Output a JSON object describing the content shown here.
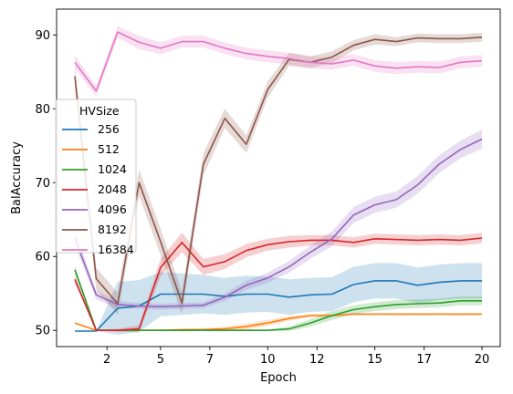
{
  "chart_data": {
    "type": "line",
    "xlabel": "Epoch",
    "ylabel": "BalAccuracy",
    "x": [
      1,
      2,
      3,
      4,
      5,
      6,
      7,
      8,
      9,
      10,
      11,
      12,
      13,
      14,
      15,
      16,
      17,
      18,
      19,
      20
    ],
    "x_tick_labels": [
      "2",
      "5",
      "7",
      "10",
      "12",
      "15",
      "17",
      "20"
    ],
    "x_tick_values": [
      2.5,
      5,
      7.3,
      10,
      12.3,
      15,
      17.3,
      20
    ],
    "y_ticks": [
      50,
      60,
      70,
      80,
      90
    ],
    "xlim": [
      0.15,
      20.85
    ],
    "ylim": [
      47.8,
      93.5
    ],
    "legend": {
      "title": "HVSize",
      "position": "center-left"
    },
    "series": [
      {
        "name": "256",
        "color": "#1f77b4",
        "values": [
          49.9,
          49.9,
          53.0,
          53.3,
          54.9,
          54.9,
          54.9,
          54.6,
          54.9,
          54.9,
          54.5,
          54.8,
          54.9,
          56.2,
          56.7,
          56.7,
          56.1,
          56.5,
          56.7,
          56.7
        ],
        "band": [
          0.0,
          0.0,
          3.6,
          3.5,
          3.0,
          2.8,
          2.6,
          2.5,
          2.5,
          2.4,
          2.4,
          2.3,
          2.3,
          2.4,
          2.4,
          2.4,
          2.4,
          2.4,
          2.4,
          2.4
        ]
      },
      {
        "name": "512",
        "color": "#ff7f0e",
        "values": [
          51.0,
          50.0,
          50.0,
          50.0,
          50.0,
          50.1,
          50.1,
          50.2,
          50.5,
          51.0,
          51.6,
          52.0,
          52.0,
          52.2,
          52.2,
          52.2,
          52.2,
          52.2,
          52.2,
          52.2
        ],
        "band": [
          0.0,
          0.0,
          0.1,
          0.1,
          0.1,
          0.1,
          0.2,
          0.3,
          0.4,
          0.4,
          0.3,
          0.2,
          0.2,
          0.1,
          0.1,
          0.1,
          0.1,
          0.1,
          0.1,
          0.1
        ]
      },
      {
        "name": "1024",
        "color": "#2ca02c",
        "values": [
          58.2,
          50.0,
          50.0,
          50.0,
          50.0,
          50.0,
          50.0,
          50.0,
          50.0,
          50.0,
          50.2,
          51.0,
          52.0,
          52.8,
          53.2,
          53.5,
          53.6,
          53.7,
          54.0,
          54.0
        ],
        "band": [
          0.6,
          0.0,
          0.1,
          0.1,
          0.1,
          0.1,
          0.1,
          0.1,
          0.1,
          0.1,
          0.3,
          0.5,
          0.6,
          0.6,
          0.6,
          0.6,
          0.6,
          0.6,
          0.6,
          0.6
        ]
      },
      {
        "name": "2048",
        "color": "#d62728",
        "values": [
          56.9,
          50.0,
          50.0,
          50.2,
          58.5,
          61.9,
          58.6,
          59.3,
          60.8,
          61.6,
          62.0,
          62.2,
          62.2,
          61.9,
          62.4,
          62.3,
          62.2,
          62.3,
          62.2,
          62.5
        ],
        "band": [
          0.6,
          0.0,
          0.2,
          0.5,
          1.2,
          1.3,
          1.1,
          1.0,
          0.9,
          0.8,
          0.8,
          0.7,
          0.7,
          0.7,
          0.7,
          0.7,
          0.7,
          0.7,
          0.7,
          0.7
        ]
      },
      {
        "name": "4096",
        "color": "#9467bd",
        "values": [
          62.5,
          54.8,
          53.5,
          53.3,
          53.2,
          53.3,
          53.4,
          54.5,
          56.1,
          57.1,
          58.6,
          60.6,
          62.4,
          65.6,
          67.0,
          67.7,
          69.7,
          72.5,
          74.5,
          75.9
        ],
        "band": [
          1.0,
          0.6,
          0.5,
          0.4,
          0.4,
          0.4,
          0.4,
          0.5,
          0.6,
          0.7,
          0.8,
          0.9,
          1.0,
          1.1,
          1.1,
          1.1,
          1.2,
          1.2,
          1.2,
          1.3
        ]
      },
      {
        "name": "8192",
        "color": "#8c564b",
        "values": [
          84.4,
          57.0,
          53.6,
          70.0,
          62.0,
          53.7,
          72.5,
          78.7,
          75.2,
          82.6,
          86.7,
          86.3,
          87.0,
          88.6,
          89.4,
          89.1,
          89.6,
          89.5,
          89.5,
          89.7
        ],
        "band": [
          1.5,
          1.5,
          1.5,
          1.8,
          1.8,
          1.5,
          1.5,
          1.3,
          1.2,
          1.1,
          0.9,
          0.8,
          0.8,
          0.7,
          0.7,
          0.6,
          0.6,
          0.6,
          0.6,
          0.6
        ]
      },
      {
        "name": "16384",
        "color": "#e377c2",
        "values": [
          86.3,
          82.4,
          90.4,
          89.0,
          88.2,
          89.1,
          89.1,
          88.2,
          87.5,
          87.1,
          86.8,
          86.3,
          86.1,
          86.6,
          85.8,
          85.5,
          85.7,
          85.6,
          86.3,
          86.5
        ],
        "band": [
          0.9,
          0.7,
          0.8,
          0.9,
          0.8,
          0.8,
          0.8,
          0.8,
          0.8,
          0.8,
          0.8,
          0.8,
          0.8,
          0.8,
          0.8,
          0.8,
          0.8,
          0.8,
          0.8,
          0.8
        ]
      }
    ]
  }
}
